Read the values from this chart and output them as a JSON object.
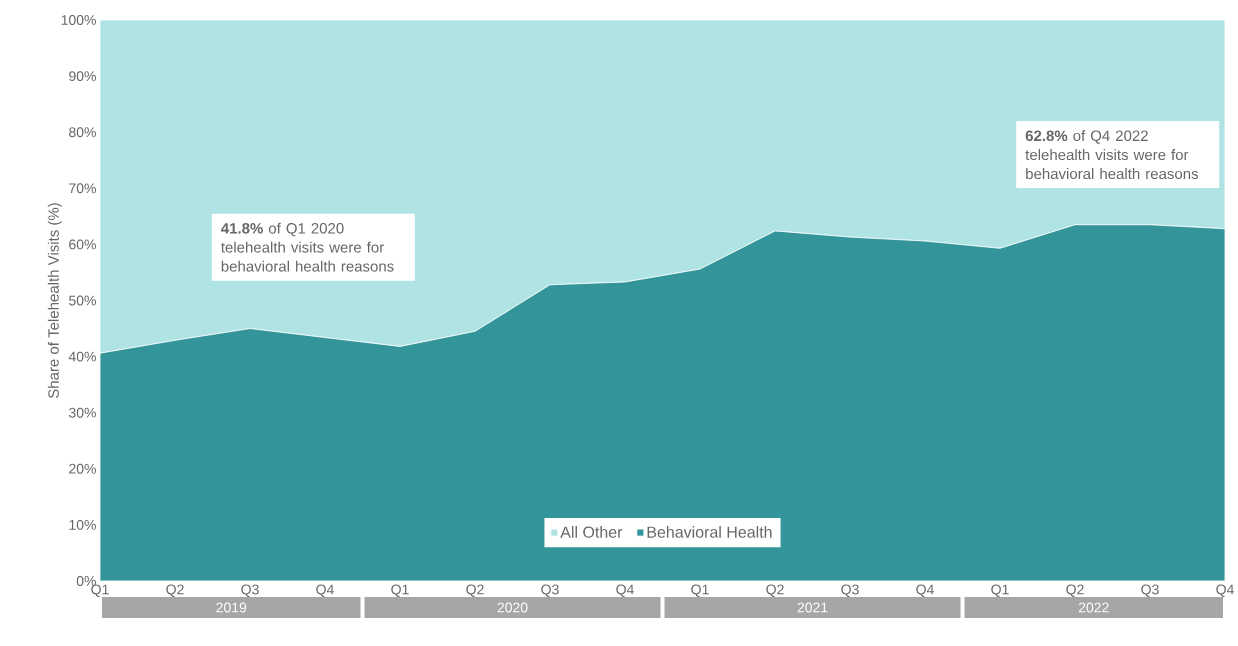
{
  "chart_data": {
    "type": "area",
    "stacked": true,
    "ylabel": "Share of Telehealth Visits (%)",
    "categories": [
      "Q1",
      "Q2",
      "Q3",
      "Q4",
      "Q1",
      "Q2",
      "Q3",
      "Q4",
      "Q1",
      "Q2",
      "Q3",
      "Q4",
      "Q1",
      "Q2",
      "Q3",
      "Q4"
    ],
    "series": [
      {
        "name": "Behavioral Health",
        "color": "#339599",
        "values": [
          40.6,
          42.9,
          45.0,
          43.4,
          41.8,
          44.5,
          52.8,
          53.3,
          55.6,
          62.4,
          61.3,
          60.6,
          59.3,
          63.5,
          63.5,
          62.8
        ]
      },
      {
        "name": "All Other",
        "color": "#b0e3e4",
        "values": [
          59.4,
          57.1,
          55.0,
          56.6,
          58.2,
          55.5,
          47.2,
          46.7,
          44.4,
          37.6,
          38.7,
          39.4,
          40.7,
          36.5,
          36.5,
          37.2
        ]
      }
    ],
    "ylim": [
      0,
      100
    ],
    "yticks": [
      {
        "value": 0,
        "label": "0%"
      },
      {
        "value": 10,
        "label": "10%"
      },
      {
        "value": 20,
        "label": "20%"
      },
      {
        "value": 30,
        "label": "30%"
      },
      {
        "value": 40,
        "label": "40%"
      },
      {
        "value": 50,
        "label": "50%"
      },
      {
        "value": 60,
        "label": "60%"
      },
      {
        "value": 70,
        "label": "70%"
      },
      {
        "value": 80,
        "label": "80%"
      },
      {
        "value": 90,
        "label": "90%"
      },
      {
        "value": 100,
        "label": "100%"
      }
    ],
    "legend": "bottom",
    "annotations": [
      "**41.8%** of Q1 2020 telehealth visits were for behavioral health reasons",
      "**62.8%** of Q4 2022 telehealth visits were for behavioral health reasons",
      "2019",
      "2020",
      "2021",
      "2022"
    ]
  }
}
